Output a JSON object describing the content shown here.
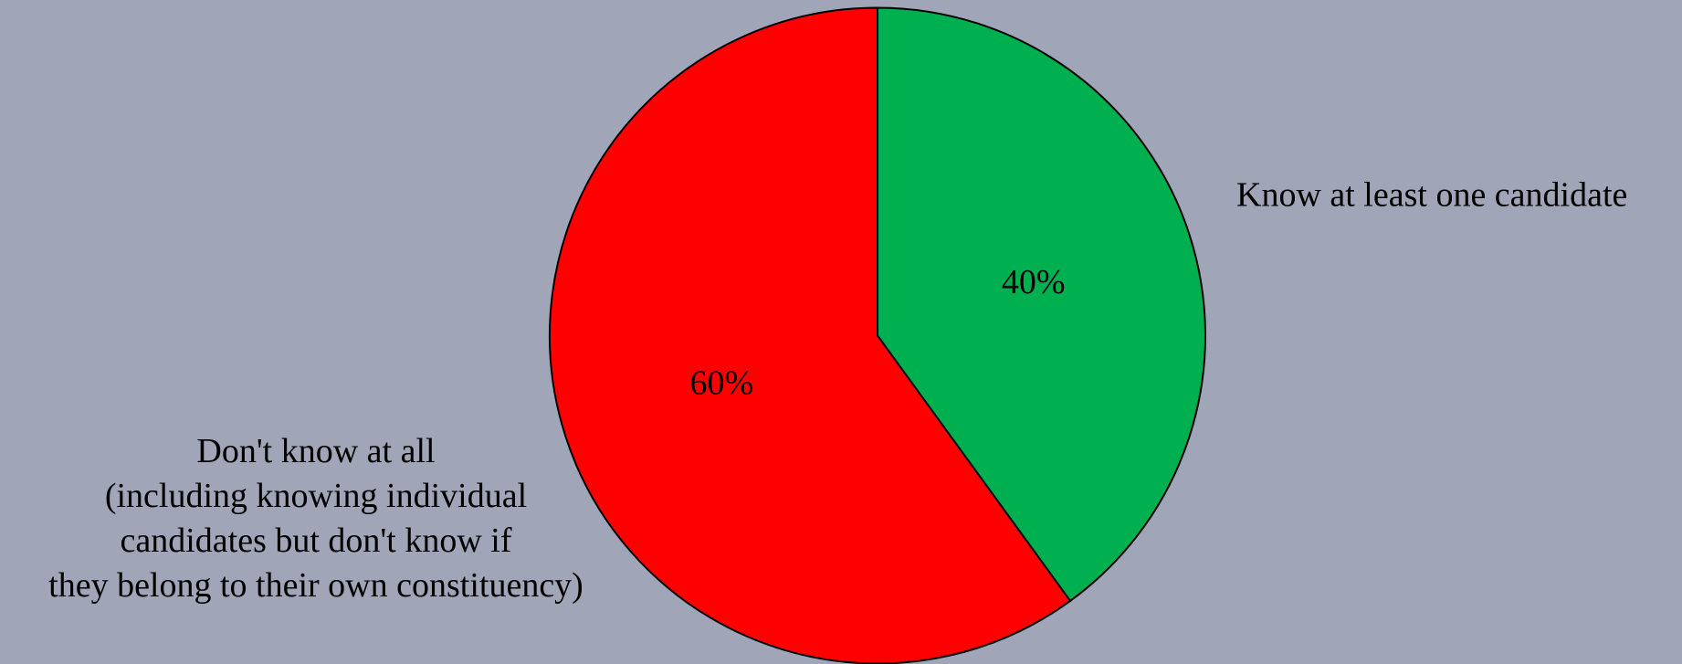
{
  "chart_data": {
    "type": "pie",
    "categories": [
      "Know at least one candidate",
      "Don't know at all\n(including knowing individual\ncandidates but don't know if\nthey belong to their own constituency)"
    ],
    "values": [
      40,
      60
    ],
    "value_labels": [
      "40%",
      "60%"
    ],
    "colors": [
      "#00b050",
      "#ff0000"
    ]
  }
}
